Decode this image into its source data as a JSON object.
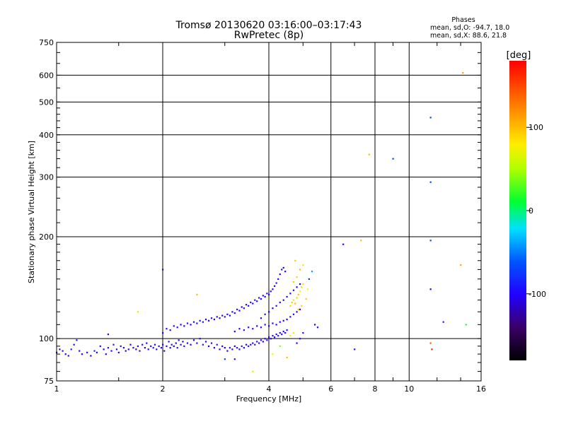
{
  "chart_data": {
    "type": "scatter",
    "title": "Tromsø 20130620 03:16:00–03:17:43",
    "subtitle": "RwPretec (8p)",
    "xlabel": "Frequency [MHz]",
    "ylabel": "Stationary phase Virtual Height [km]",
    "x_scale": "log",
    "y_scale": "log",
    "xlim": [
      1,
      16
    ],
    "ylim": [
      75,
      750
    ],
    "x_ticks": [
      1,
      2,
      4,
      6,
      8,
      10,
      16
    ],
    "x_tick_labels": [
      "1",
      "2",
      "4",
      "6",
      "8",
      "10",
      "16"
    ],
    "y_ticks": [
      75,
      100,
      200,
      300,
      400,
      500,
      600,
      750
    ],
    "y_tick_labels": [
      "75",
      "100",
      "200",
      "300",
      "400",
      "500",
      "600",
      "750"
    ],
    "grid": true,
    "stats": {
      "heading": "Phases",
      "line_o": "mean, sd,O:  -94.7,  18.0",
      "line_x": "mean, sd,X:   88.6,  21.8"
    },
    "colorbar": {
      "label": "[deg]",
      "range": [
        -180,
        180
      ],
      "ticks": [
        100,
        0,
        -100
      ],
      "tick_labels": [
        "100",
        "0",
        "-100"
      ],
      "colormap": "rainbow"
    },
    "points": [
      [
        1.0,
        91,
        -100
      ],
      [
        1.02,
        93,
        -105
      ],
      [
        1.04,
        92,
        -95
      ],
      [
        1.06,
        90,
        -110
      ],
      [
        1.08,
        89,
        -100
      ],
      [
        1.1,
        93,
        -90
      ],
      [
        1.12,
        96,
        -100
      ],
      [
        1.14,
        99,
        -95
      ],
      [
        1.16,
        92,
        -105
      ],
      [
        1.18,
        90,
        -100
      ],
      [
        1.22,
        91,
        -95
      ],
      [
        1.25,
        89,
        -110
      ],
      [
        1.28,
        92,
        -85
      ],
      [
        1.3,
        91,
        -100
      ],
      [
        1.33,
        95,
        -95
      ],
      [
        1.36,
        93,
        -100
      ],
      [
        1.38,
        90,
        -105
      ],
      [
        1.4,
        94,
        -95
      ],
      [
        1.43,
        92,
        -100
      ],
      [
        1.45,
        96,
        -90
      ],
      [
        1.48,
        93,
        -100
      ],
      [
        1.5,
        91,
        -105
      ],
      [
        1.52,
        95,
        -95
      ],
      [
        1.55,
        94,
        -100
      ],
      [
        1.57,
        92,
        -110
      ],
      [
        1.6,
        93,
        -95
      ],
      [
        1.62,
        96,
        -100
      ],
      [
        1.65,
        94,
        -100
      ],
      [
        1.68,
        93,
        -120
      ],
      [
        1.7,
        95,
        -95
      ],
      [
        1.72,
        92,
        -100
      ],
      [
        1.75,
        96,
        -95
      ],
      [
        1.78,
        94,
        -105
      ],
      [
        1.8,
        97,
        -100
      ],
      [
        1.82,
        93,
        -95
      ],
      [
        1.85,
        95,
        -100
      ],
      [
        1.88,
        94,
        -90
      ],
      [
        1.9,
        96,
        -100
      ],
      [
        1.92,
        93,
        -105
      ],
      [
        1.95,
        95,
        -95
      ],
      [
        1.98,
        94,
        -100
      ],
      [
        2.0,
        96,
        -100
      ],
      [
        2.02,
        92,
        -110
      ],
      [
        2.05,
        95,
        -100
      ],
      [
        2.08,
        98,
        -95
      ],
      [
        2.1,
        94,
        -100
      ],
      [
        2.12,
        96,
        -95
      ],
      [
        2.15,
        95,
        -105
      ],
      [
        2.18,
        97,
        -100
      ],
      [
        2.2,
        94,
        -90
      ],
      [
        2.22,
        99,
        -100
      ],
      [
        2.25,
        96,
        -95
      ],
      [
        2.28,
        98,
        -105
      ],
      [
        2.3,
        95,
        -100
      ],
      [
        2.35,
        97,
        -95
      ],
      [
        2.4,
        96,
        -100
      ],
      [
        2.45,
        99,
        -105
      ],
      [
        2.5,
        97,
        -95
      ],
      [
        2.55,
        100,
        -100
      ],
      [
        2.6,
        96,
        -90
      ],
      [
        2.65,
        98,
        -100
      ],
      [
        2.7,
        95,
        -105
      ],
      [
        2.75,
        97,
        -95
      ],
      [
        2.8,
        94,
        -100
      ],
      [
        2.85,
        96,
        -95
      ],
      [
        2.9,
        93,
        -105
      ],
      [
        2.95,
        95,
        -100
      ],
      [
        3.0,
        94,
        -100
      ],
      [
        3.05,
        92,
        -110
      ],
      [
        3.1,
        94,
        -95
      ],
      [
        3.15,
        93,
        -100
      ],
      [
        3.2,
        95,
        -105
      ],
      [
        3.25,
        94,
        -95
      ],
      [
        3.3,
        93,
        -100
      ],
      [
        3.35,
        95,
        -90
      ],
      [
        3.4,
        94,
        -100
      ],
      [
        3.45,
        96,
        -105
      ],
      [
        3.5,
        95,
        -95
      ],
      [
        3.55,
        96,
        -100
      ],
      [
        3.6,
        97,
        -105
      ],
      [
        3.65,
        96,
        -95
      ],
      [
        3.7,
        98,
        -100
      ],
      [
        3.75,
        97,
        -95
      ],
      [
        3.8,
        99,
        -100
      ],
      [
        3.85,
        98,
        -105
      ],
      [
        3.9,
        100,
        -95
      ],
      [
        3.95,
        99,
        -100
      ],
      [
        4.0,
        101,
        -100
      ],
      [
        4.05,
        100,
        -110
      ],
      [
        4.1,
        102,
        -95
      ],
      [
        4.15,
        101,
        -100
      ],
      [
        4.2,
        103,
        -105
      ],
      [
        4.25,
        102,
        -95
      ],
      [
        4.3,
        104,
        -100
      ],
      [
        4.35,
        103,
        -95
      ],
      [
        4.4,
        105,
        -100
      ],
      [
        4.45,
        104,
        -105
      ],
      [
        4.5,
        106,
        -95
      ],
      [
        4.6,
        102,
        80
      ],
      [
        4.7,
        104,
        85
      ],
      [
        2.0,
        104,
        -100
      ],
      [
        2.05,
        107,
        -95
      ],
      [
        2.1,
        106,
        -105
      ],
      [
        2.15,
        109,
        -100
      ],
      [
        2.2,
        108,
        -95
      ],
      [
        2.25,
        110,
        -100
      ],
      [
        2.3,
        109,
        -110
      ],
      [
        2.35,
        111,
        -95
      ],
      [
        2.4,
        110,
        -100
      ],
      [
        2.45,
        112,
        -105
      ],
      [
        2.5,
        111,
        -95
      ],
      [
        2.55,
        113,
        -100
      ],
      [
        2.6,
        112,
        -90
      ],
      [
        2.65,
        114,
        -100
      ],
      [
        2.7,
        113,
        -105
      ],
      [
        2.75,
        115,
        -95
      ],
      [
        2.8,
        114,
        -100
      ],
      [
        2.85,
        116,
        -95
      ],
      [
        2.9,
        115,
        -105
      ],
      [
        2.95,
        117,
        -100
      ],
      [
        3.0,
        116,
        -95
      ],
      [
        3.05,
        118,
        -100
      ],
      [
        3.1,
        117,
        -105
      ],
      [
        3.15,
        120,
        -95
      ],
      [
        3.2,
        119,
        -100
      ],
      [
        3.25,
        122,
        -95
      ],
      [
        3.3,
        121,
        -105
      ],
      [
        3.35,
        124,
        -100
      ],
      [
        3.4,
        123,
        -95
      ],
      [
        3.45,
        126,
        -100
      ],
      [
        3.5,
        125,
        -105
      ],
      [
        3.55,
        128,
        -95
      ],
      [
        3.6,
        127,
        -100
      ],
      [
        3.65,
        130,
        -95
      ],
      [
        3.7,
        129,
        -105
      ],
      [
        3.75,
        132,
        -100
      ],
      [
        3.8,
        131,
        -95
      ],
      [
        3.85,
        134,
        -100
      ],
      [
        3.9,
        133,
        -105
      ],
      [
        3.95,
        136,
        -95
      ],
      [
        4.0,
        135,
        -100
      ],
      [
        4.05,
        138,
        -95
      ],
      [
        4.1,
        140,
        -100
      ],
      [
        4.15,
        143,
        -105
      ],
      [
        4.2,
        146,
        -95
      ],
      [
        4.25,
        150,
        -100
      ],
      [
        4.3,
        155,
        -105
      ],
      [
        4.35,
        160,
        -95
      ],
      [
        4.4,
        162,
        -100
      ],
      [
        4.45,
        158,
        -95
      ],
      [
        3.2,
        105,
        -100
      ],
      [
        3.3,
        107,
        -105
      ],
      [
        3.4,
        106,
        -95
      ],
      [
        3.5,
        108,
        -100
      ],
      [
        3.6,
        107,
        -95
      ],
      [
        3.7,
        109,
        -105
      ],
      [
        3.8,
        108,
        -100
      ],
      [
        3.9,
        110,
        -95
      ],
      [
        4.0,
        109,
        -100
      ],
      [
        4.1,
        111,
        -105
      ],
      [
        4.2,
        110,
        -95
      ],
      [
        4.3,
        112,
        -100
      ],
      [
        4.4,
        113,
        -95
      ],
      [
        4.5,
        114,
        -105
      ],
      [
        4.6,
        116,
        -100
      ],
      [
        4.7,
        118,
        -95
      ],
      [
        4.8,
        120,
        -100
      ],
      [
        4.9,
        122,
        -105
      ],
      [
        3.8,
        115,
        -100
      ],
      [
        3.9,
        118,
        -95
      ],
      [
        4.0,
        120,
        -105
      ],
      [
        4.1,
        123,
        -100
      ],
      [
        4.2,
        125,
        -95
      ],
      [
        4.3,
        128,
        -100
      ],
      [
        4.4,
        130,
        -105
      ],
      [
        4.5,
        133,
        -95
      ],
      [
        4.6,
        136,
        -100
      ],
      [
        4.7,
        139,
        -95
      ],
      [
        4.8,
        142,
        -105
      ],
      [
        4.9,
        145,
        -100
      ],
      [
        4.6,
        125,
        90
      ],
      [
        4.65,
        128,
        95
      ],
      [
        4.7,
        130,
        85
      ],
      [
        4.75,
        127,
        100
      ],
      [
        4.8,
        132,
        90
      ],
      [
        4.85,
        135,
        95
      ],
      [
        4.9,
        138,
        80
      ],
      [
        4.95,
        142,
        90
      ],
      [
        5.0,
        145,
        85
      ],
      [
        4.7,
        147,
        95
      ],
      [
        4.8,
        152,
        90
      ],
      [
        4.9,
        160,
        100
      ],
      [
        5.0,
        165,
        85
      ],
      [
        4.75,
        170,
        95
      ],
      [
        4.85,
        122,
        100
      ],
      [
        4.95,
        125,
        90
      ],
      [
        5.1,
        131,
        95
      ],
      [
        5.15,
        140,
        80
      ],
      [
        5.2,
        150,
        -80
      ],
      [
        5.3,
        158,
        -40
      ],
      [
        5.4,
        110,
        -105
      ],
      [
        5.5,
        108,
        -100
      ],
      [
        5.0,
        104,
        -95
      ],
      [
        4.9,
        100,
        -100
      ],
      [
        4.8,
        97,
        -105
      ],
      [
        1.4,
        103,
        -110
      ],
      [
        1.7,
        120,
        60
      ],
      [
        2.0,
        160,
        -120
      ],
      [
        2.5,
        135,
        100
      ],
      [
        3.6,
        80,
        70
      ],
      [
        3.0,
        87,
        -70
      ],
      [
        3.2,
        87,
        -100
      ],
      [
        4.1,
        90,
        80
      ],
      [
        4.3,
        95,
        40
      ],
      [
        4.5,
        88,
        100
      ],
      [
        6.5,
        190,
        -100
      ],
      [
        7.0,
        93,
        -100
      ],
      [
        7.3,
        195,
        100
      ],
      [
        7.7,
        350,
        100
      ],
      [
        9.0,
        340,
        -70
      ],
      [
        11.5,
        450,
        -70
      ],
      [
        11.5,
        290,
        -70
      ],
      [
        11.5,
        195,
        -70
      ],
      [
        11.5,
        140,
        -110
      ],
      [
        11.5,
        97,
        140
      ],
      [
        11.6,
        93,
        170
      ],
      [
        12.5,
        112,
        -90
      ],
      [
        14.0,
        165,
        110
      ],
      [
        14.5,
        110,
        20
      ],
      [
        14.2,
        610,
        110
      ]
    ]
  }
}
